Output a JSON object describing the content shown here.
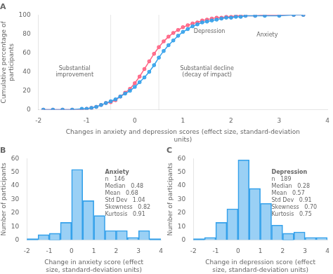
{
  "chart_data": [
    {
      "type": "line",
      "title": "A",
      "xlabel": "Changes in anxiety and depression scores (effect size, standard-deviation units)",
      "ylabel": "Cumulative percentage of participants",
      "xlim": [
        -2,
        4
      ],
      "xticks": [
        -2,
        -1,
        0,
        1,
        2,
        3,
        4
      ],
      "ylim": [
        0,
        100
      ],
      "yticks": [
        0,
        20,
        40,
        60,
        80,
        100
      ],
      "grid": false,
      "marker": "circle",
      "x": [
        -1.9,
        -1.7,
        -1.5,
        -1.3,
        -1.1,
        -1.0,
        -0.9,
        -0.8,
        -0.7,
        -0.6,
        -0.5,
        -0.4,
        -0.3,
        -0.2,
        -0.1,
        0.0,
        0.1,
        0.2,
        0.3,
        0.4,
        0.5,
        0.6,
        0.7,
        0.8,
        0.9,
        1.0,
        1.1,
        1.2,
        1.3,
        1.4,
        1.5,
        1.6,
        1.7,
        1.8,
        1.9,
        2.0,
        2.1,
        2.2,
        2.3,
        2.5,
        2.7,
        3.0,
        3.3,
        3.5
      ],
      "series": [
        {
          "values": [
            0,
            0,
            0,
            0,
            1,
            1,
            2,
            3,
            5,
            7,
            9,
            11,
            14,
            17,
            20,
            24,
            29,
            34,
            40,
            47,
            55,
            62,
            68,
            73,
            78,
            82,
            85,
            88,
            90,
            92,
            93,
            94,
            95,
            96,
            97,
            97,
            98,
            98,
            99,
            99,
            99,
            99,
            100,
            100
          ]
        },
        {
          "values": [
            0,
            0,
            0,
            0,
            0,
            1,
            2,
            3,
            5,
            7,
            8,
            10,
            14,
            18,
            22,
            28,
            35,
            43,
            51,
            59,
            66,
            72,
            77,
            81,
            84,
            87,
            89,
            91,
            92,
            94,
            95,
            96,
            97,
            97,
            98,
            98,
            99,
            99,
            99,
            99,
            100,
            100,
            100,
            100
          ]
        }
      ],
      "vlines": [
        -0.5,
        0.5
      ],
      "annotations": [
        {
          "text": [
            "Substantial",
            "improvement"
          ],
          "x": -1.25,
          "y": 35
        },
        {
          "text": [
            "Substantial decline",
            "(decay of impact)"
          ],
          "x": 1.5,
          "y": 35
        },
        {
          "text": [
            "Anxiety"
          ],
          "x": 2.75,
          "y": 77
        },
        {
          "text": [
            "Depression"
          ],
          "x": 1.55,
          "y": 81
        }
      ]
    },
    {
      "type": "histogram",
      "title": "B",
      "xlabel": "Change in anxiety score (effect size, standard-deviation units)",
      "ylabel": "Number of participants",
      "xlim": [
        -2,
        4
      ],
      "xticks": [
        -2,
        -1,
        0,
        1,
        2,
        3,
        4
      ],
      "ylim": [
        0,
        60
      ],
      "yticks": [
        0,
        10,
        20,
        30,
        40,
        50,
        60
      ],
      "grid": false,
      "bins": [
        -2,
        -1.5,
        -1,
        -0.5,
        0,
        0.5,
        1,
        1.5,
        2,
        2.5,
        3,
        3.5,
        4
      ],
      "values": [
        1,
        4,
        5,
        13,
        52,
        29,
        18,
        7,
        7,
        2,
        7,
        1
      ],
      "annotations": [
        {
          "text": [
            "Anxiety",
            "n   146",
            "Median   0.48",
            "Mean   0.68",
            "Std Dev   1.04",
            "Skewness   0.82",
            "Kurtosis   0.91"
          ],
          "x": 1.5,
          "y": 52
        }
      ]
    },
    {
      "type": "histogram",
      "title": "C",
      "xlabel": "Change in depression score (effect size, standard-deviation units)",
      "ylabel": "Number of participants",
      "xlim": [
        -2,
        4
      ],
      "xticks": [
        -2,
        -1,
        0,
        1,
        2,
        3,
        4
      ],
      "ylim": [
        0,
        60
      ],
      "yticks": [
        0,
        10,
        20,
        30,
        40,
        50,
        60
      ],
      "grid": false,
      "bins": [
        -2,
        -1.5,
        -1,
        -0.5,
        0,
        0.5,
        1,
        1.5,
        2,
        2.5,
        3,
        3.5,
        4
      ],
      "values": [
        1,
        2,
        13,
        23,
        59,
        38,
        27,
        11,
        5,
        6,
        2,
        2
      ],
      "annotations": [
        {
          "text": [
            "Depression",
            "n   189",
            "Median   0.28",
            "Mean   0.57",
            "Std Dev   0.91",
            "Skewness   0.70",
            "Kurtosis   0.75"
          ],
          "x": 1.5,
          "y": 52
        }
      ]
    }
  ]
}
